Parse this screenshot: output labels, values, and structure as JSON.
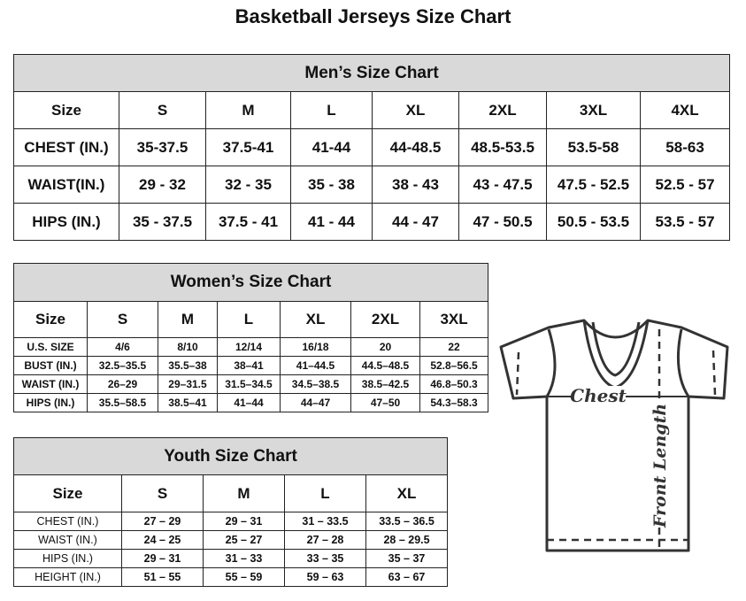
{
  "title": "Basketball Jerseys Size Chart",
  "men": {
    "caption": "Men’s Size Chart",
    "header": [
      "Size",
      "S",
      "M",
      "L",
      "XL",
      "2XL",
      "3XL",
      "4XL"
    ],
    "rows": [
      [
        "CHEST (IN.)",
        "35-37.5",
        "37.5-41",
        "41-44",
        "44-48.5",
        "48.5-53.5",
        "53.5-58",
        "58-63"
      ],
      [
        "WAIST(IN.)",
        "29 - 32",
        "32 - 35",
        "35 - 38",
        "38 - 43",
        "43 - 47.5",
        "47.5 - 52.5",
        "52.5 - 57"
      ],
      [
        "HIPS (IN.)",
        "35 - 37.5",
        "37.5 - 41",
        "41 - 44",
        "44 - 47",
        "47 - 50.5",
        "50.5 - 53.5",
        "53.5 - 57"
      ]
    ]
  },
  "women": {
    "caption": "Women’s Size Chart",
    "header": [
      "Size",
      "S",
      "M",
      "L",
      "XL",
      "2XL",
      "3XL"
    ],
    "rows": [
      [
        "U.S.  SIZE",
        "4/6",
        "8/10",
        "12/14",
        "16/18",
        "20",
        "22"
      ],
      [
        "BUST  (IN.)",
        "32.5–35.5",
        "35.5–38",
        "38–41",
        "41–44.5",
        "44.5–48.5",
        "52.8–56.5"
      ],
      [
        "WAIST  (IN.)",
        "26–29",
        "29–31.5",
        "31.5–34.5",
        "34.5–38.5",
        "38.5–42.5",
        "46.8–50.3"
      ],
      [
        "HIPS  (IN.)",
        "35.5–58.5",
        "38.5–41",
        "41–44",
        "44–47",
        "47–50",
        "54.3–58.3"
      ]
    ]
  },
  "youth": {
    "caption": "Youth Size Chart",
    "header": [
      "Size",
      "S",
      "M",
      "L",
      "XL"
    ],
    "rows": [
      [
        "CHEST  (IN.)",
        "27  –  29",
        "29  –  31",
        "31  –  33.5",
        "33.5  –  36.5"
      ],
      [
        "WAIST  (IN.)",
        "24  –  25",
        "25  –  27",
        "27  –  28",
        "28  –  29.5"
      ],
      [
        "HIPS  (IN.)",
        "29  –  31",
        "31  –  33",
        "33  –  35",
        "35  –  37"
      ],
      [
        "HEIGHT  (IN.)",
        "51  –  55",
        "55  –  59",
        "59  –  63",
        "63  –  67"
      ]
    ]
  },
  "diagram": {
    "chest_label": "Chest",
    "length_label": "Front Length"
  }
}
